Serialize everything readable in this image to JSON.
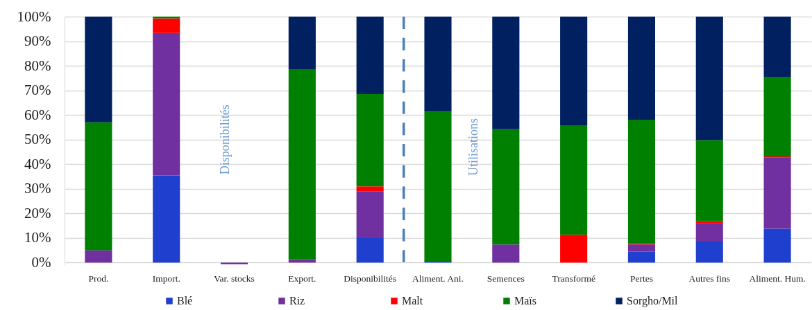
{
  "chart_data": {
    "type": "bar",
    "stacked": true,
    "categories": [
      "Prod.",
      "Import.",
      "Var. stocks",
      "Export.",
      "Disponibilités",
      "Aliment. Ani.",
      "Semences",
      "Transformé",
      "Pertes",
      "Autres fins",
      "Aliment. Hum."
    ],
    "series": [
      {
        "name": "Blé",
        "color": "#1f3fce",
        "values": [
          null,
          35.4,
          null,
          null,
          10,
          0.4,
          null,
          null,
          4.4,
          8.6,
          13.8
        ]
      },
      {
        "name": "Riz",
        "color": "#7030a0",
        "values": [
          5,
          57.9,
          -0.7,
          1.1,
          19,
          null,
          7.4,
          null,
          3,
          7.1,
          28.9
        ]
      },
      {
        "name": "Malt",
        "color": "#ff0000",
        "values": [
          null,
          6,
          null,
          null,
          2,
          null,
          null,
          11.3,
          0.5,
          1.2,
          0.5
        ]
      },
      {
        "name": "Maïs",
        "color": "#008000",
        "values": [
          52,
          0.7,
          null,
          77.5,
          37.5,
          61,
          46.8,
          44.3,
          50.2,
          32.9,
          32.3
        ]
      },
      {
        "name": "Sorgho/Mil",
        "color": "#002060",
        "values": [
          43,
          null,
          null,
          21.4,
          31.5,
          38.6,
          45.8,
          44.4,
          41.9,
          50.2,
          24.5
        ]
      }
    ],
    "ylim": [
      -1,
      100
    ],
    "yticks": [
      {
        "value": 0,
        "label": "0%"
      },
      {
        "value": 10,
        "label": "10%"
      },
      {
        "value": 20,
        "label": "20%"
      },
      {
        "value": 30,
        "label": "30%"
      },
      {
        "value": 40,
        "label": "40%"
      },
      {
        "value": 50,
        "label": "50%"
      },
      {
        "value": 60,
        "label": "60%"
      },
      {
        "value": 70,
        "label": "70%"
      },
      {
        "value": 80,
        "label": "80%"
      },
      {
        "value": 90,
        "label": "90%"
      },
      {
        "value": 100,
        "label": "100%"
      }
    ],
    "grid": "y",
    "legend": "bottom",
    "annotations": [
      "Disponibilités",
      "Utilisations"
    ]
  }
}
